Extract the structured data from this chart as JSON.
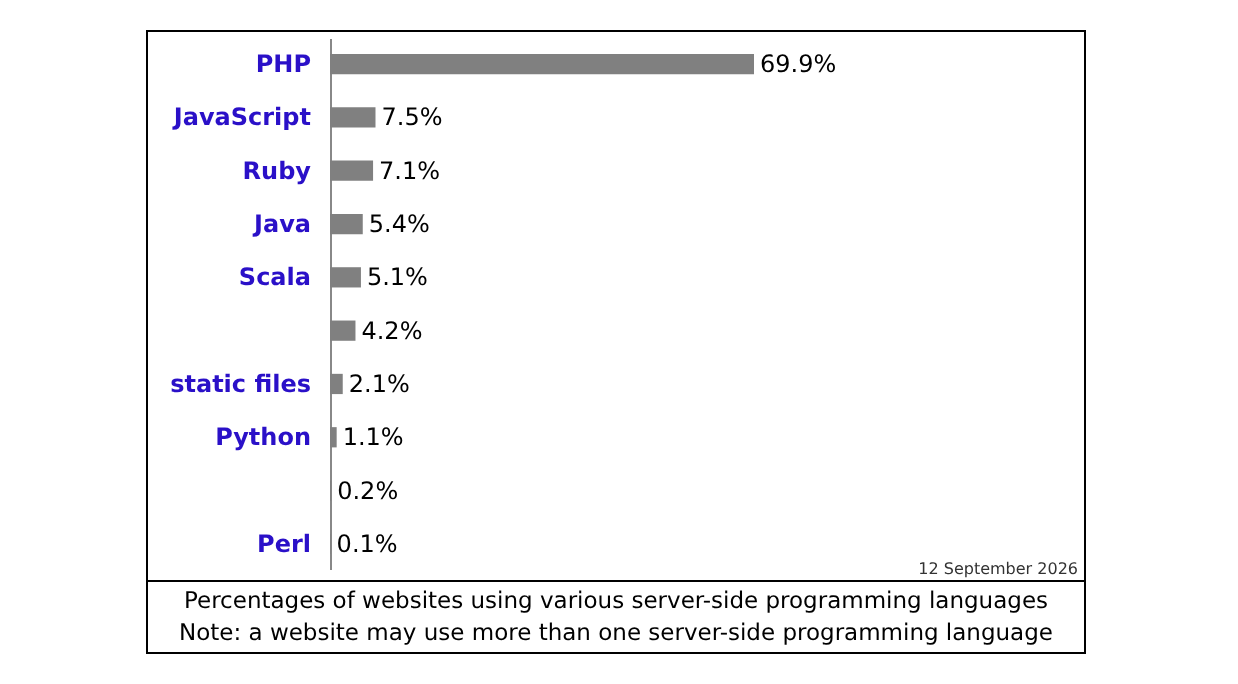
{
  "chart_data": {
    "type": "bar",
    "orientation": "horizontal",
    "categories": [
      "PHP",
      "JavaScript",
      "Ruby",
      "Java",
      "Scala",
      null,
      "static files",
      "Python",
      null,
      "Perl"
    ],
    "values": [
      69.9,
      7.5,
      7.1,
      5.4,
      5.1,
      4.2,
      2.1,
      1.1,
      0.2,
      0.1
    ],
    "value_labels": [
      "69.9%",
      "7.5%",
      "7.1%",
      "5.4%",
      "5.1%",
      "4.2%",
      "2.1%",
      "1.1%",
      "0.2%",
      "0.1%"
    ],
    "color": "#808080",
    "annotations": [
      "12 September 2026",
      "Percentages of websites using various server-side programming languages",
      "Note: a website may use more than one server-side programming language"
    ]
  }
}
